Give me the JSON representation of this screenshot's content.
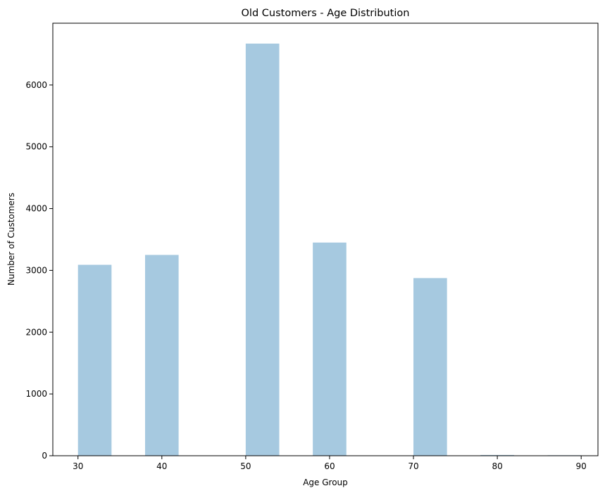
{
  "chart_data": {
    "type": "bar",
    "title": "Old Customers - Age Distribution",
    "xlabel": "Age Group",
    "ylabel": "Number of Customers",
    "bars": [
      {
        "x0": 30,
        "x1": 34,
        "value": 3090
      },
      {
        "x0": 38,
        "x1": 42,
        "value": 3250
      },
      {
        "x0": 50,
        "x1": 54,
        "value": 6670
      },
      {
        "x0": 58,
        "x1": 62,
        "value": 3450
      },
      {
        "x0": 70,
        "x1": 74,
        "value": 2875
      },
      {
        "x0": 78,
        "x1": 82,
        "value": 12
      },
      {
        "x0": 86,
        "x1": 90,
        "value": 8
      }
    ],
    "xlim": [
      27.0,
      92.0
    ],
    "ylim": [
      0,
      7000
    ],
    "xticks": [
      30,
      40,
      50,
      60,
      70,
      80,
      90
    ],
    "yticks": [
      0,
      1000,
      2000,
      3000,
      4000,
      5000,
      6000
    ],
    "bar_color": "#a6c9e0",
    "grid": false,
    "legend": "none"
  }
}
